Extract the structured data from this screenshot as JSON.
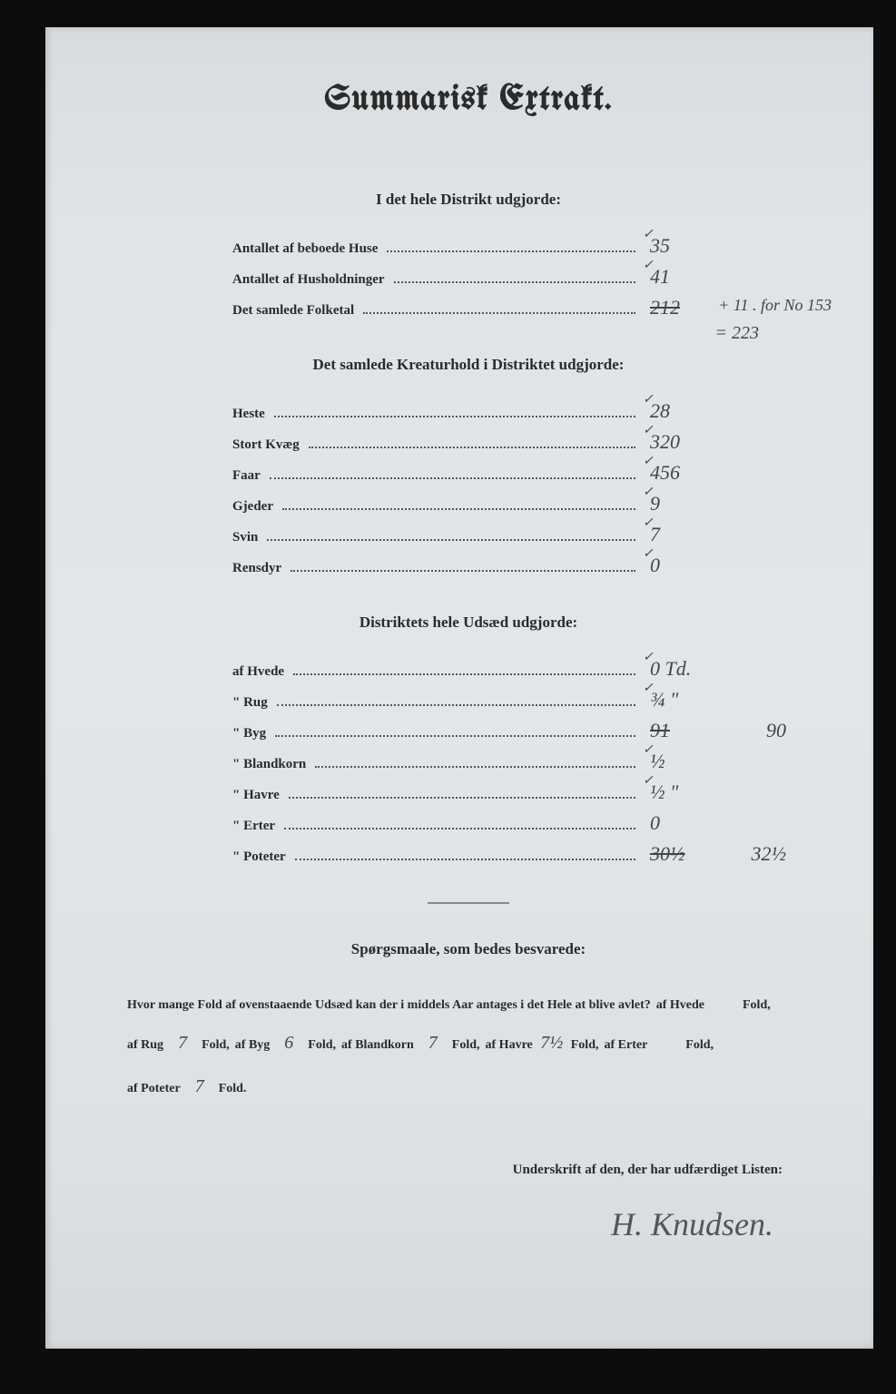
{
  "title": "Summarisk Extrakt.",
  "section1": {
    "header": "I det hele Distrikt udgjorde:",
    "rows": [
      {
        "label": "Antallet af beboede Huse",
        "value": "35"
      },
      {
        "label": "Antallet af Husholdninger",
        "value": "41"
      },
      {
        "label": "Det samlede Folketal",
        "value": "212",
        "annotation": "+ 11 . for No 153",
        "sum": "= 223"
      }
    ]
  },
  "section2": {
    "header": "Det samlede Kreaturhold i Distriktet udgjorde:",
    "rows": [
      {
        "label": "Heste",
        "value": "28"
      },
      {
        "label": "Stort Kvæg",
        "value": "320"
      },
      {
        "label": "Faar",
        "value": "456"
      },
      {
        "label": "Gjeder",
        "value": "9"
      },
      {
        "label": "Svin",
        "value": "7"
      },
      {
        "label": "Rensdyr",
        "value": "0"
      }
    ]
  },
  "section3": {
    "header": "Distriktets hele Udsæd udgjorde:",
    "rows": [
      {
        "label": "af Hvede",
        "value": "0 Td."
      },
      {
        "label": "\" Rug",
        "value": "¾ \""
      },
      {
        "label": "\" Byg",
        "value": "91",
        "side": "90",
        "struck": true
      },
      {
        "label": "\" Blandkorn",
        "value": "½"
      },
      {
        "label": "\" Havre",
        "value": "½ \""
      },
      {
        "label": "\" Erter",
        "value": "0"
      },
      {
        "label": "\" Poteter",
        "value": "30½",
        "side": "32½",
        "struck": true
      }
    ]
  },
  "section4": {
    "header": "Spørgsmaale, som bedes besvarede:",
    "intro": "Hvor mange Fold af ovenstaaende Udsæd kan der i middels Aar antages i det Hele at blive avlet?",
    "items": [
      {
        "crop": "af Hvede",
        "value": "",
        "unit": "Fold,"
      },
      {
        "crop": "af Rug",
        "value": "7",
        "unit": "Fold,"
      },
      {
        "crop": "af Byg",
        "value": "6",
        "unit": "Fold,"
      },
      {
        "crop": "af Blandkorn",
        "value": "7",
        "unit": "Fold,"
      },
      {
        "crop": "af Havre",
        "value": "7½",
        "unit": "Fold,"
      },
      {
        "crop": "af Erter",
        "value": "",
        "unit": "Fold,"
      },
      {
        "crop": "af Poteter",
        "value": "7",
        "unit": "Fold."
      }
    ]
  },
  "signature_label": "Underskrift af den, der har udfærdiget Listen:",
  "signature": "H. Knudsen."
}
